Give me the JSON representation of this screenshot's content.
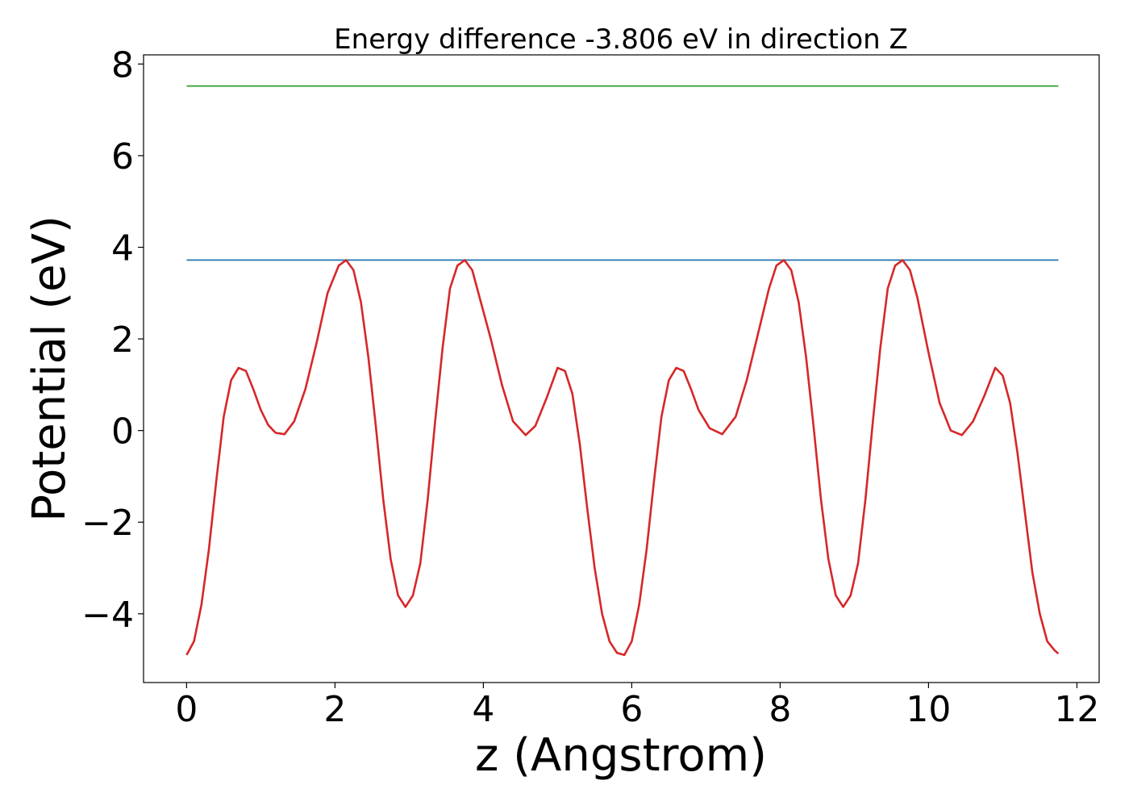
{
  "chart_data": {
    "type": "line",
    "title": "Energy difference -3.806 eV in direction Z",
    "xlabel": "z (Angstrom)",
    "ylabel": "Potential (eV)",
    "xlim": [
      -0.58,
      12.3
    ],
    "ylim": [
      -5.5,
      8.2
    ],
    "xticks": [
      0,
      2,
      4,
      6,
      8,
      10,
      12
    ],
    "yticks": [
      -4,
      -2,
      0,
      2,
      4,
      6,
      8
    ],
    "xtick_labels": [
      "0",
      "2",
      "4",
      "6",
      "8",
      "10",
      "12"
    ],
    "ytick_labels": [
      "−4",
      "−2",
      "0",
      "2",
      "4",
      "6",
      "8"
    ],
    "grid": false,
    "legend": "none",
    "series": [
      {
        "color": "#2ca02c",
        "style": "horizontal",
        "x": [
          0,
          11.75
        ],
        "y": [
          7.52,
          7.52
        ]
      },
      {
        "color": "#1f77b4",
        "style": "horizontal",
        "x": [
          0,
          11.75
        ],
        "y": [
          3.72,
          3.72
        ]
      },
      {
        "color": "#d62728",
        "style": "curve",
        "x": [
          0,
          0.1,
          0.2,
          0.3,
          0.4,
          0.5,
          0.6,
          0.7,
          0.8,
          0.9,
          1.0,
          1.1,
          1.2,
          1.32,
          1.45,
          1.6,
          1.75,
          1.9,
          2.05,
          2.15,
          2.25,
          2.35,
          2.45,
          2.55,
          2.65,
          2.75,
          2.85,
          2.95,
          3.05,
          3.15,
          3.25,
          3.35,
          3.45,
          3.55,
          3.65,
          3.75,
          3.85,
          3.95,
          4.1,
          4.25,
          4.4,
          4.57,
          4.7,
          4.85,
          5.0,
          5.1,
          5.2,
          5.3,
          5.4,
          5.5,
          5.6,
          5.7,
          5.8,
          5.9,
          6.0,
          6.1,
          6.2,
          6.3,
          6.4,
          6.5,
          6.6,
          6.7,
          6.8,
          6.9,
          7.05,
          7.22,
          7.4,
          7.55,
          7.7,
          7.85,
          7.95,
          8.05,
          8.15,
          8.25,
          8.35,
          8.45,
          8.55,
          8.65,
          8.75,
          8.85,
          8.95,
          9.05,
          9.15,
          9.25,
          9.35,
          9.45,
          9.55,
          9.65,
          9.75,
          9.85,
          10.0,
          10.15,
          10.3,
          10.45,
          10.6,
          10.75,
          10.9,
          11.0,
          11.1,
          11.2,
          11.3,
          11.4,
          11.5,
          11.6,
          11.7,
          11.75
        ],
        "y": [
          -4.9,
          -4.6,
          -3.8,
          -2.6,
          -1.1,
          0.3,
          1.1,
          1.37,
          1.3,
          0.9,
          0.45,
          0.12,
          -0.05,
          -0.08,
          0.2,
          0.9,
          1.9,
          3.0,
          3.6,
          3.72,
          3.5,
          2.8,
          1.6,
          0.1,
          -1.5,
          -2.8,
          -3.6,
          -3.85,
          -3.6,
          -2.9,
          -1.5,
          0.2,
          1.8,
          3.1,
          3.6,
          3.72,
          3.5,
          2.9,
          2.0,
          1.0,
          0.2,
          -0.1,
          0.1,
          0.7,
          1.37,
          1.3,
          0.8,
          -0.3,
          -1.7,
          -3.0,
          -4.0,
          -4.6,
          -4.85,
          -4.9,
          -4.6,
          -3.8,
          -2.6,
          -1.1,
          0.3,
          1.1,
          1.37,
          1.3,
          0.9,
          0.45,
          0.05,
          -0.08,
          0.3,
          1.1,
          2.1,
          3.1,
          3.6,
          3.72,
          3.5,
          2.8,
          1.6,
          0.1,
          -1.5,
          -2.8,
          -3.6,
          -3.85,
          -3.6,
          -2.9,
          -1.5,
          0.2,
          1.8,
          3.1,
          3.6,
          3.72,
          3.5,
          2.9,
          1.7,
          0.6,
          0.0,
          -0.1,
          0.2,
          0.75,
          1.37,
          1.2,
          0.6,
          -0.5,
          -1.8,
          -3.1,
          -4.0,
          -4.6,
          -4.8,
          -4.87
        ]
      }
    ]
  }
}
